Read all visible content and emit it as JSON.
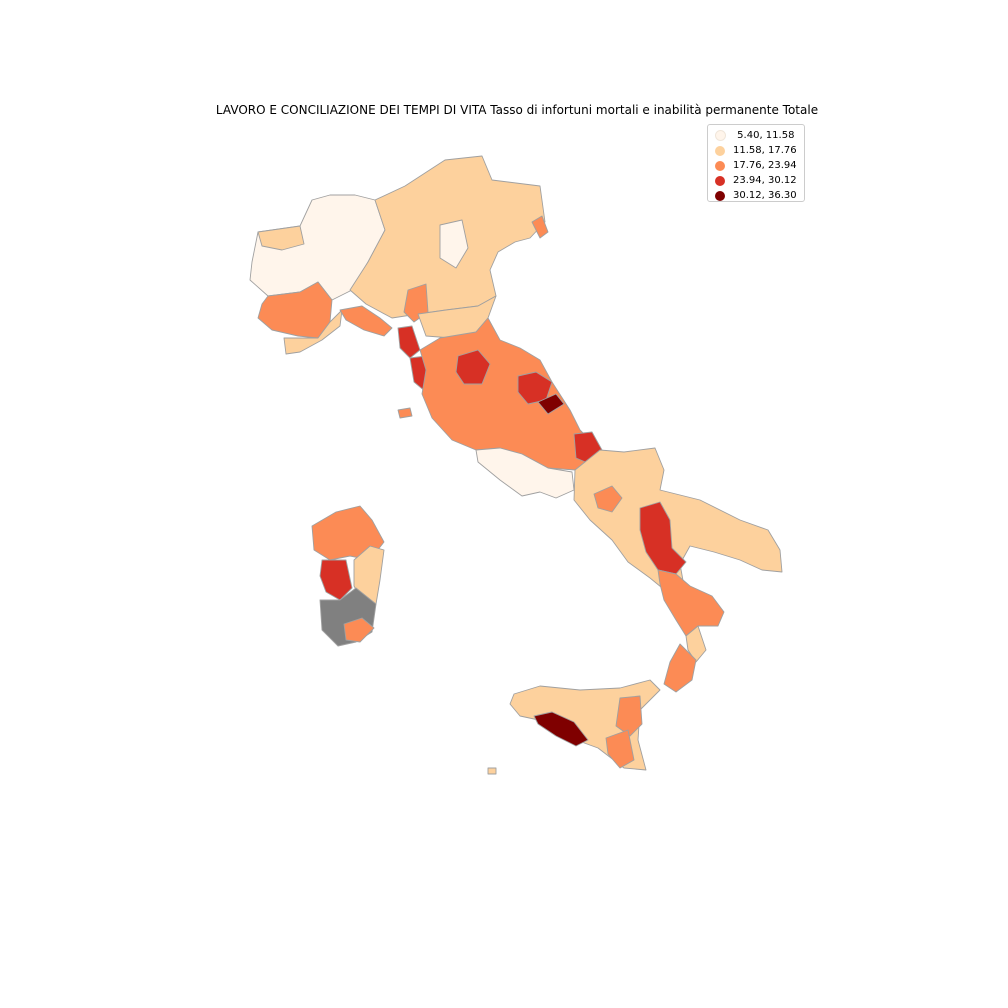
{
  "title": "LAVORO E CONCILIAZIONE DEI TEMPI DI VITA Tasso di infortuni mortali e inabilità permanente Totale",
  "legend": [
    {
      "label": " 5.40, 11.58",
      "color": "#fff5eb"
    },
    {
      "label": "11.58, 17.76",
      "color": "#fdd19d"
    },
    {
      "label": "17.76, 23.94",
      "color": "#fc8b55"
    },
    {
      "label": "23.94, 30.12",
      "color": "#d73025"
    },
    {
      "label": "30.12, 36.30",
      "color": "#7f0000"
    }
  ],
  "colors": {
    "missing": "#808080",
    "border": "#a0a0a0"
  }
}
